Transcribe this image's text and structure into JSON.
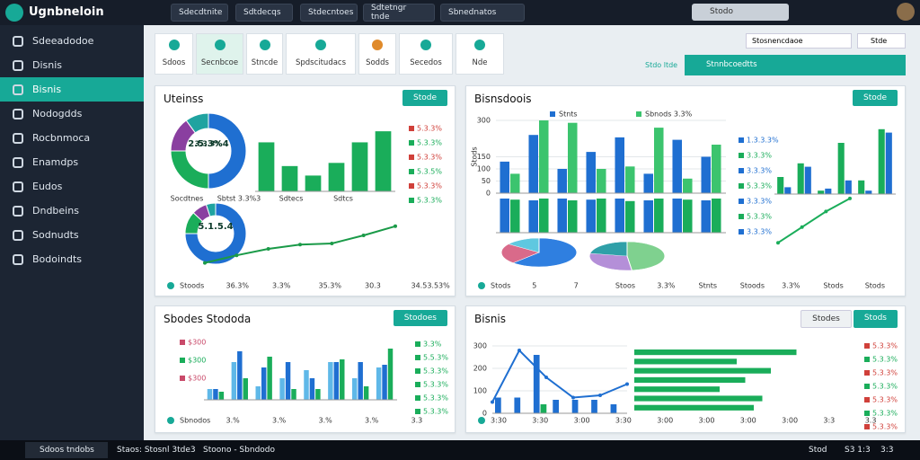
{
  "app": {
    "name": "Ugnbneloin"
  },
  "topbar": {
    "tabs": [
      "Sdecdtnite",
      "Sdtdecqs",
      "Stdecntoes",
      "Sdtetngr tnde",
      "Sbnednatos"
    ],
    "search": "Stodo"
  },
  "sidebar": {
    "items": [
      "Sdeeadodoe",
      "Disnis",
      "Bisnis",
      "Nodogdds",
      "Rocbnmoca",
      "Enamdps",
      "Eudos",
      "Dndbeins",
      "Sodnudts",
      "Bodoindts"
    ],
    "active": 2
  },
  "toolbar": {
    "cards": [
      "Sdoos",
      "Secnbcoe",
      "Stncde",
      "Spdscitudacs",
      "Sodds",
      "Secedos",
      "Nde"
    ],
    "select": "Stosnencdaoe",
    "chip": "Stde",
    "link": "Stdo ltde",
    "action": "Stnnbcoedtts"
  },
  "panels": [
    {
      "title": "Uteinss",
      "buttons": [
        "Stode"
      ],
      "charts": [
        {
          "type": "donut",
          "values": [
            50,
            25,
            15,
            10
          ],
          "colors": [
            "#1f6fd1",
            "#1aad5a",
            "#8a3fa0",
            "#1fa3a0"
          ],
          "labels": [
            "2.5.3%4",
            "3.3.3%"
          ]
        },
        {
          "type": "bar",
          "values": [
            62,
            32,
            20,
            36,
            62,
            76
          ],
          "color": "#1aad5a",
          "ylim": [
            0,
            100
          ]
        },
        {
          "type": "list",
          "items": [
            "5.3.3%",
            "5.3.3%",
            "5.3.3%",
            "5.3.5%",
            "5.3.3%",
            "5.3.3%"
          ],
          "color": "#d0403a"
        },
        {
          "type": "labels",
          "items": [
            "Socdtnes",
            "Sbtst 3.3%3",
            "Sdtecs",
            "Sdtcs"
          ]
        },
        {
          "type": "donut",
          "values": [
            75,
            12,
            8,
            5
          ],
          "colors": [
            "#1f6fd1",
            "#1aad5a",
            "#8a3fa0",
            "#1fa3a0"
          ],
          "labels": [
            "5.1.5.4"
          ]
        },
        {
          "type": "line",
          "values": [
            4,
            18,
            30,
            38,
            40,
            55,
            72
          ],
          "color": "#1a9a48",
          "ylim": [
            0,
            100
          ]
        }
      ],
      "footer": [
        "Stoods",
        "36.3%",
        "3.3%",
        "35.3%",
        "30.3",
        "34.53.53%"
      ]
    },
    {
      "title": "Bisnsdoois",
      "buttons": [
        "Stode"
      ],
      "charts": [
        {
          "type": "bar",
          "ylim": [
            0,
            300
          ],
          "yticks": [
            0,
            50,
            100,
            150,
            300
          ],
          "ylabel": "Stods",
          "series": [
            {
              "name": "Stnts",
              "color": "#1f6fd1",
              "values": [
                130,
                240,
                100,
                170,
                230,
                80,
                220,
                150
              ]
            },
            {
              "name": "Sbnods 3.3%",
              "color": "#3cc46e",
              "values": [
                80,
                300,
                290,
                100,
                110,
                270,
                60,
                200
              ]
            }
          ]
        },
        {
          "type": "bar",
          "ylim": [
            0,
            100
          ],
          "series": [
            {
              "color": "#1f6fd1",
              "values": [
                95,
                90,
                95,
                92,
                95,
                90,
                95,
                90
              ]
            },
            {
              "color": "#1aad5a",
              "values": [
                92,
                95,
                90,
                95,
                88,
                95,
                92,
                95
              ]
            }
          ]
        },
        {
          "type": "pie",
          "values": [
            62,
            23,
            15
          ],
          "colors": [
            "#2f7fe0",
            "#d96a8a",
            "#5fc8e0"
          ]
        },
        {
          "type": "pie",
          "values": [
            48,
            30,
            22
          ],
          "colors": [
            "#7fd18f",
            "#b48fd8",
            "#2fa0a8"
          ]
        },
        {
          "type": "bar",
          "ylim": [
            0,
            100
          ],
          "series": [
            {
              "color": "#1aad5a",
              "values": [
                25,
                45,
                5,
                75,
                20,
                95
              ]
            },
            {
              "color": "#1f6fd1",
              "values": [
                10,
                40,
                8,
                20,
                5,
                90
              ]
            }
          ]
        },
        {
          "type": "line",
          "values": [
            10,
            40,
            70,
            95
          ],
          "color": "#1aad5a",
          "ylim": [
            0,
            100
          ]
        },
        {
          "type": "list",
          "items": [
            "1.3.3.3%",
            "3.3.3%",
            "3.3.3%",
            "5.3.3%",
            "3.3.3%",
            "5.3.3%",
            "3.3.3%"
          ],
          "color": "#1f6fd1"
        }
      ],
      "footer": [
        "Stods",
        "5",
        "7",
        "Stoos",
        "3.3%",
        "Stnts",
        "Stoods",
        "3.3%",
        "Stods",
        "Stods"
      ]
    },
    {
      "title": "Sbodes Stododa",
      "buttons": [
        "Stodoes"
      ],
      "charts": [
        {
          "type": "list",
          "items": [
            "$300",
            "$300",
            "$300"
          ],
          "color": "#c94a6a"
        },
        {
          "type": "bar",
          "ylim": [
            0,
            100
          ],
          "series": [
            {
              "color": "#5fb8e8",
              "values": [
                20,
                70,
                25,
                40,
                55,
                70,
                40,
                60
              ]
            },
            {
              "color": "#1f6fd1",
              "values": [
                20,
                90,
                60,
                70,
                40,
                70,
                70,
                65
              ]
            },
            {
              "color": "#1aad5a",
              "values": [
                15,
                40,
                80,
                20,
                20,
                75,
                25,
                95
              ]
            }
          ]
        },
        {
          "type": "list",
          "items": [
            "3.3%",
            "5.5.3%",
            "5.3.3%",
            "5.3.3%",
            "5.3.3%",
            "5.3.3%"
          ],
          "color": "#1aad5a"
        }
      ],
      "footer": [
        "Sbnodos",
        "3.%",
        "3.%",
        "3.%",
        "3.%",
        "3.3"
      ]
    },
    {
      "title": "Bisnis",
      "buttons": [
        "Stodes",
        "Stods"
      ],
      "charts": [
        {
          "type": "bar",
          "ylim": [
            0,
            300
          ],
          "yticks": [
            0,
            100,
            200,
            300
          ],
          "series": [
            {
              "color": "#1f6fd1",
              "values": [
                70,
                70,
                260,
                60,
                60,
                60,
                40
              ]
            },
            {
              "color": "#1aad5a",
              "values": [
                0,
                0,
                40,
                0,
                0,
                0,
                0
              ]
            }
          ]
        },
        {
          "type": "line",
          "values": [
            50,
            280,
            160,
            70,
            80,
            130
          ],
          "color": "#1f6fd1",
          "ylim": [
            0,
            300
          ]
        },
        {
          "type": "hbar",
          "values": [
            95,
            60,
            80,
            65,
            50,
            75,
            70
          ],
          "color": "#1aad5a",
          "xlim": [
            0,
            100
          ]
        },
        {
          "type": "list",
          "items": [
            "5.3.3%",
            "5.3.3%",
            "5.3.3%",
            "5.3.3%",
            "5.3.3%",
            "5.3.3%",
            "5.3.3%"
          ],
          "color": "#d0403a"
        }
      ],
      "footer": [
        "3:30",
        "3:30",
        "3:00",
        "3:30",
        "3:00",
        "3:00",
        "3:00",
        "3:00",
        "3:3",
        "3.3"
      ]
    }
  ],
  "taskbar": {
    "search": "Sdoos tndobs",
    "items": [
      "Staos: Stosnl 3tde3",
      "Stoono - Sbndodo"
    ],
    "tray": [
      "Stod",
      "S3 1:3",
      "3:3"
    ]
  }
}
